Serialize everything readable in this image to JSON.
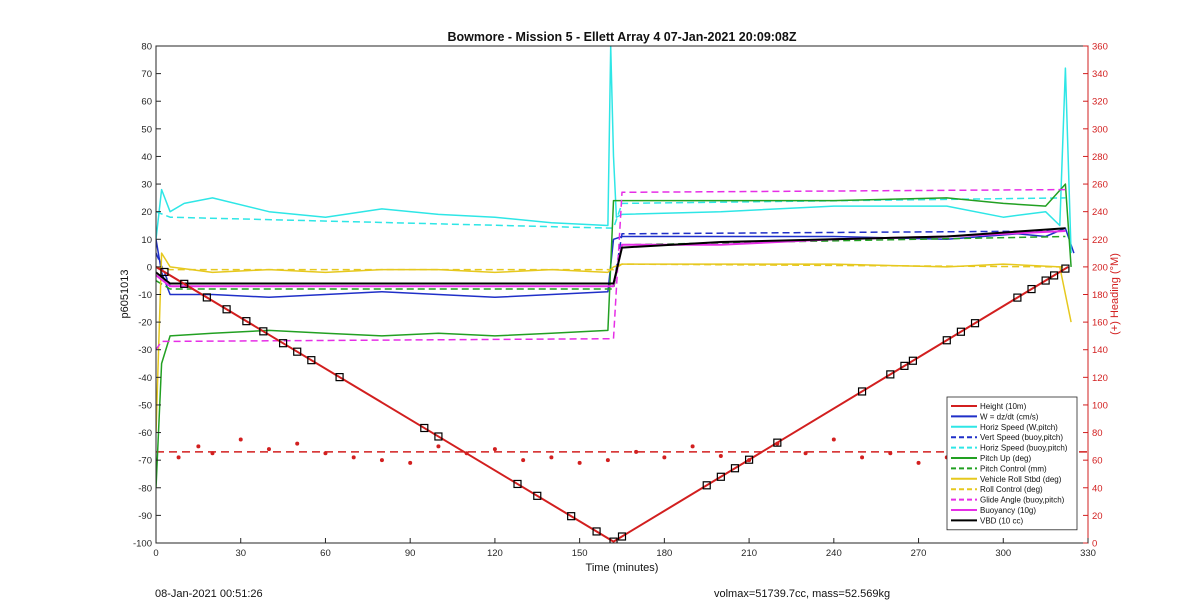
{
  "footer": {
    "timestamp": "08-Jan-2021 00:51:26",
    "info": "volmax=51739.7cc, mass=52.569kg"
  },
  "chart_data": {
    "type": "line",
    "title": "Bowmore - Mission 5 - Ellett Array 4 07-Jan-2021 20:09:08Z",
    "xlabel": "Time (minutes)",
    "ylabel": "p6051013",
    "y2label": "(+) Heading (°M)",
    "xlim": [
      0,
      330
    ],
    "ylim": [
      -100,
      80
    ],
    "y2lim": [
      0,
      360
    ],
    "xticks": [
      0,
      30,
      60,
      90,
      120,
      150,
      180,
      210,
      240,
      270,
      300,
      330
    ],
    "yticks": [
      -100,
      -90,
      -80,
      -70,
      -60,
      -50,
      -40,
      -30,
      -20,
      -10,
      0,
      10,
      20,
      30,
      40,
      50,
      60,
      70,
      80
    ],
    "y2ticks": [
      0,
      20,
      40,
      60,
      80,
      100,
      120,
      140,
      160,
      180,
      200,
      220,
      240,
      260,
      280,
      300,
      320,
      340,
      360
    ],
    "grid": false,
    "legend_position": "bottom-right",
    "colors": {
      "height": "#d21f1f",
      "w": "#1f2fc8",
      "horiz": "#2ee6e6",
      "pitch": "#22a022",
      "roll": "#e6c81e",
      "glide": "#e62ee6",
      "vbd": "#000000",
      "heading": "#d21f1f"
    },
    "series": [
      {
        "name": "Height (10m)",
        "key": "height",
        "style": "solid",
        "width": 2,
        "x": [
          0,
          162,
          323
        ],
        "y": [
          0,
          -99.5,
          0
        ]
      },
      {
        "name": "W = dz/dt (cm/s)",
        "key": "w",
        "style": "solid",
        "width": 1.5,
        "x": [
          0,
          2,
          5,
          20,
          40,
          60,
          80,
          100,
          120,
          140,
          160,
          162,
          165,
          200,
          240,
          280,
          305,
          315,
          322,
          325
        ],
        "y": [
          10,
          -2,
          -10,
          -10,
          -11,
          -10,
          -9,
          -10,
          -11,
          -10,
          -9,
          10,
          11,
          11,
          11,
          10,
          12,
          11,
          14,
          5
        ]
      },
      {
        "name": "Horiz Speed (W,pitch)",
        "key": "horiz",
        "style": "solid",
        "width": 1.5,
        "x": [
          0,
          2,
          5,
          10,
          20,
          40,
          60,
          80,
          100,
          120,
          140,
          160,
          161,
          162,
          163,
          165,
          200,
          240,
          280,
          300,
          315,
          320,
          322,
          324
        ],
        "y": [
          10,
          28,
          20,
          23,
          25,
          20,
          18,
          21,
          19,
          18,
          16,
          15,
          80,
          40,
          18,
          19,
          20,
          22,
          22,
          18,
          20,
          15,
          72,
          5
        ]
      },
      {
        "name": "Vert Speed (buoy,pitch)",
        "key": "vert",
        "style": "dashed",
        "width": 1.5,
        "x": [
          0,
          5,
          162,
          165,
          322
        ],
        "y": [
          5,
          -7,
          -7,
          12,
          13
        ]
      },
      {
        "name": "Horiz Speed (buoy,pitch)",
        "key": "horizb",
        "style": "dashed",
        "width": 1.5,
        "x": [
          0,
          5,
          162,
          165,
          322
        ],
        "y": [
          20,
          18,
          14,
          23,
          25
        ]
      },
      {
        "name": "Pitch Up (deg)",
        "key": "pitch",
        "style": "solid",
        "width": 1.5,
        "x": [
          0,
          2,
          5,
          20,
          40,
          60,
          80,
          100,
          120,
          140,
          160,
          162,
          165,
          200,
          240,
          280,
          300,
          315,
          322,
          324
        ],
        "y": [
          -80,
          -35,
          -25,
          -24,
          -23,
          -24,
          -25,
          -24,
          -25,
          -24,
          -23,
          24,
          24,
          24,
          24,
          25,
          23,
          22,
          30,
          0
        ]
      },
      {
        "name": "Pitch Control (mm)",
        "key": "pitchc",
        "style": "dashed",
        "width": 1.5,
        "x": [
          0,
          5,
          162,
          165,
          322
        ],
        "y": [
          -5,
          -8,
          -8,
          8,
          11
        ]
      },
      {
        "name": "Vehicle Roll Stbd (deg)",
        "key": "roll",
        "style": "solid",
        "width": 1.5,
        "x": [
          0,
          2,
          5,
          20,
          40,
          60,
          80,
          100,
          120,
          140,
          160,
          162,
          165,
          200,
          240,
          280,
          300,
          320,
          324
        ],
        "y": [
          -60,
          5,
          0,
          -2,
          -1,
          -2,
          -1,
          -1,
          -2,
          -1,
          -2,
          0,
          1,
          1,
          1,
          0,
          1,
          0,
          -20
        ]
      },
      {
        "name": "Roll Control (deg)",
        "key": "rollc",
        "style": "dashed",
        "width": 1.5,
        "x": [
          0,
          5,
          162,
          165,
          322
        ],
        "y": [
          0,
          -1,
          -1,
          1,
          0
        ]
      },
      {
        "name": "Glide Angle (buoy,pitch)",
        "key": "glide",
        "style": "dashed",
        "width": 1.5,
        "x": [
          0,
          2,
          5,
          162,
          165,
          322
        ],
        "y": [
          -30,
          -27,
          -27,
          -26,
          27,
          28
        ]
      },
      {
        "name": "Buoyancy (10g)",
        "key": "buoy",
        "style": "solid",
        "width": 2,
        "x": [
          0,
          5,
          162,
          165,
          200,
          240,
          280,
          322
        ],
        "y": [
          -3,
          -7,
          -7,
          8,
          8,
          10,
          11,
          13
        ]
      },
      {
        "name": "VBD (10 cc)",
        "key": "vbd",
        "style": "solid",
        "width": 2,
        "x": [
          0,
          5,
          162,
          165,
          200,
          240,
          280,
          322
        ],
        "y": [
          -2,
          -6,
          -6,
          7,
          9,
          10,
          11,
          14
        ]
      }
    ],
    "heading": {
      "axis": "right",
      "mean": 66,
      "points_x": [
        0,
        8,
        15,
        20,
        30,
        40,
        50,
        60,
        70,
        80,
        90,
        100,
        110,
        120,
        130,
        140,
        150,
        160,
        170,
        180,
        190,
        200,
        210,
        220,
        230,
        240,
        250,
        260,
        270,
        280,
        290,
        300,
        310,
        320,
        324
      ],
      "points_y": [
        60,
        62,
        70,
        65,
        75,
        68,
        72,
        65,
        62,
        60,
        58,
        70,
        65,
        68,
        60,
        62,
        58,
        60,
        66,
        62,
        70,
        63,
        60,
        72,
        65,
        75,
        62,
        65,
        58,
        62,
        60,
        70,
        65,
        75,
        80
      ]
    },
    "markers": {
      "on_series": "height",
      "x": [
        3,
        10,
        18,
        25,
        32,
        38,
        45,
        50,
        55,
        65,
        95,
        100,
        128,
        135,
        147,
        156,
        162,
        165,
        195,
        200,
        205,
        210,
        220,
        250,
        260,
        265,
        268,
        280,
        285,
        290,
        305,
        310,
        315,
        318,
        322
      ]
    }
  }
}
